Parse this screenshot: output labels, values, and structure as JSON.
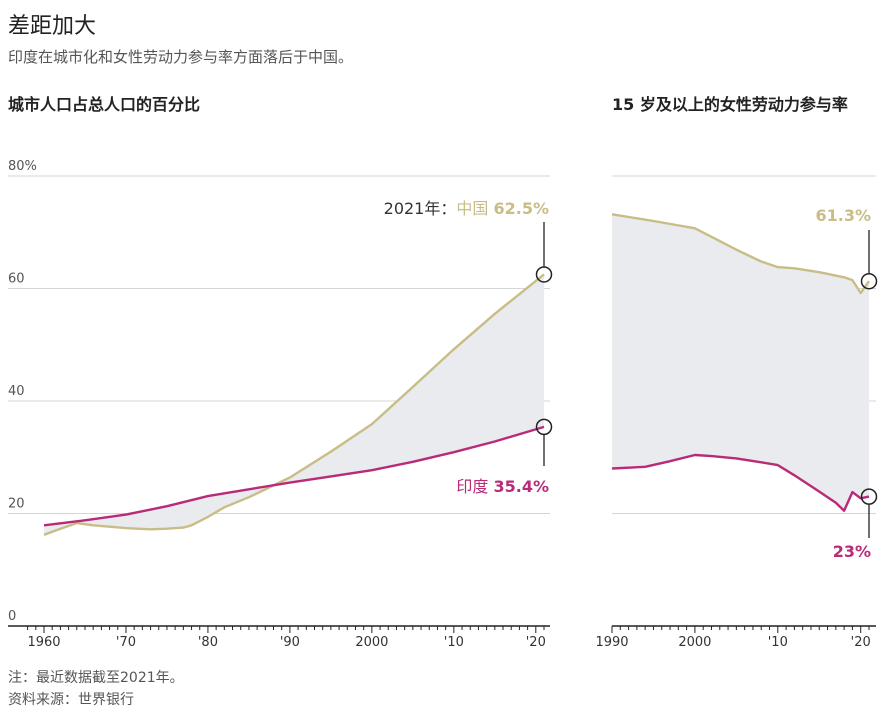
{
  "header": {
    "title": "差距加大",
    "subtitle": "印度在城市化和女性劳动力参与率方面落后于中国。"
  },
  "footer": {
    "note": "注：最近数据截至2021年。",
    "source": "资料来源：世界银行"
  },
  "colors": {
    "china": "#c9bd86",
    "india": "#b92a78",
    "gap_fill": "#eaebee",
    "grid": "#d6d6d6",
    "axis": "#222222",
    "text_dark": "#222222",
    "text_muted": "#555555"
  },
  "chart_data": [
    {
      "type": "line",
      "title": "城市人口占总人口的百分比",
      "x_ticks": [
        "1960",
        "'70",
        "'80",
        "'90",
        "2000",
        "'10",
        "'20"
      ],
      "x_tick_years": [
        1960,
        1970,
        1980,
        1990,
        2000,
        2010,
        2020
      ],
      "xlim": [
        1958,
        2023
      ],
      "ylim": [
        0,
        80
      ],
      "y_ticks": [
        0,
        20,
        40,
        60,
        80
      ],
      "y_tick_labels": [
        "0",
        "20",
        "40",
        "60",
        "80%"
      ],
      "grid": true,
      "gap_shaded": true,
      "series": [
        {
          "name": "中国",
          "color": "#c9bd86",
          "points": [
            [
              1960,
              16.2
            ],
            [
              1962,
              17.3
            ],
            [
              1964,
              18.3
            ],
            [
              1966,
              17.9
            ],
            [
              1970,
              17.4
            ],
            [
              1973,
              17.2
            ],
            [
              1975,
              17.3
            ],
            [
              1977,
              17.5
            ],
            [
              1978,
              17.9
            ],
            [
              1980,
              19.4
            ],
            [
              1982,
              21.1
            ],
            [
              1985,
              22.9
            ],
            [
              1990,
              26.4
            ],
            [
              1995,
              31.0
            ],
            [
              2000,
              35.9
            ],
            [
              2005,
              42.5
            ],
            [
              2010,
              49.2
            ],
            [
              2015,
              55.5
            ],
            [
              2021,
              62.5
            ]
          ],
          "end_label": "2021年：中国 62.5%",
          "end_label_prefix": "2021年：",
          "end_label_name": "中国",
          "end_label_value": "62.5%"
        },
        {
          "name": "印度",
          "color": "#b92a78",
          "points": [
            [
              1960,
              17.9
            ],
            [
              1965,
              18.8
            ],
            [
              1970,
              19.8
            ],
            [
              1975,
              21.3
            ],
            [
              1980,
              23.1
            ],
            [
              1985,
              24.3
            ],
            [
              1990,
              25.5
            ],
            [
              1995,
              26.6
            ],
            [
              2000,
              27.7
            ],
            [
              2005,
              29.2
            ],
            [
              2010,
              30.9
            ],
            [
              2015,
              32.8
            ],
            [
              2021,
              35.4
            ]
          ],
          "end_label": "印度 35.4%",
          "end_label_name": "印度",
          "end_label_value": "35.4%"
        }
      ]
    },
    {
      "type": "line",
      "title": "15 岁及以上的女性劳动力参与率",
      "title_bold_part": "15",
      "title_rest": " 岁及以上的女性劳动力参与率",
      "x_ticks": [
        "1990",
        "2000",
        "'10",
        "'20"
      ],
      "x_tick_years": [
        1990,
        2000,
        2010,
        2020
      ],
      "xlim": [
        1990,
        2022.5
      ],
      "ylim": [
        0,
        80
      ],
      "y_ticks": [
        0,
        20,
        40,
        60,
        80
      ],
      "grid": true,
      "gap_shaded": true,
      "series": [
        {
          "name": "中国",
          "color": "#c9bd86",
          "points": [
            [
              1990,
              73.2
            ],
            [
              1995,
              72.0
            ],
            [
              2000,
              70.7
            ],
            [
              2002,
              69.2
            ],
            [
              2005,
              66.9
            ],
            [
              2008,
              64.8
            ],
            [
              2010,
              63.8
            ],
            [
              2012,
              63.6
            ],
            [
              2015,
              62.9
            ],
            [
              2018,
              62.0
            ],
            [
              2019,
              61.5
            ],
            [
              2020,
              59.2
            ],
            [
              2021,
              61.3
            ]
          ],
          "end_label": "61.3%",
          "end_label_value": "61.3%"
        },
        {
          "name": "印度",
          "color": "#b92a78",
          "points": [
            [
              1990,
              28.0
            ],
            [
              1994,
              28.3
            ],
            [
              1997,
              29.3
            ],
            [
              2000,
              30.4
            ],
            [
              2002,
              30.2
            ],
            [
              2005,
              29.8
            ],
            [
              2008,
              29.1
            ],
            [
              2010,
              28.6
            ],
            [
              2012,
              26.8
            ],
            [
              2015,
              23.9
            ],
            [
              2017,
              21.9
            ],
            [
              2018,
              20.5
            ],
            [
              2019,
              23.8
            ],
            [
              2020,
              22.7
            ],
            [
              2021,
              23.0
            ]
          ],
          "end_label": "23%",
          "end_label_value": "23%"
        }
      ]
    }
  ]
}
